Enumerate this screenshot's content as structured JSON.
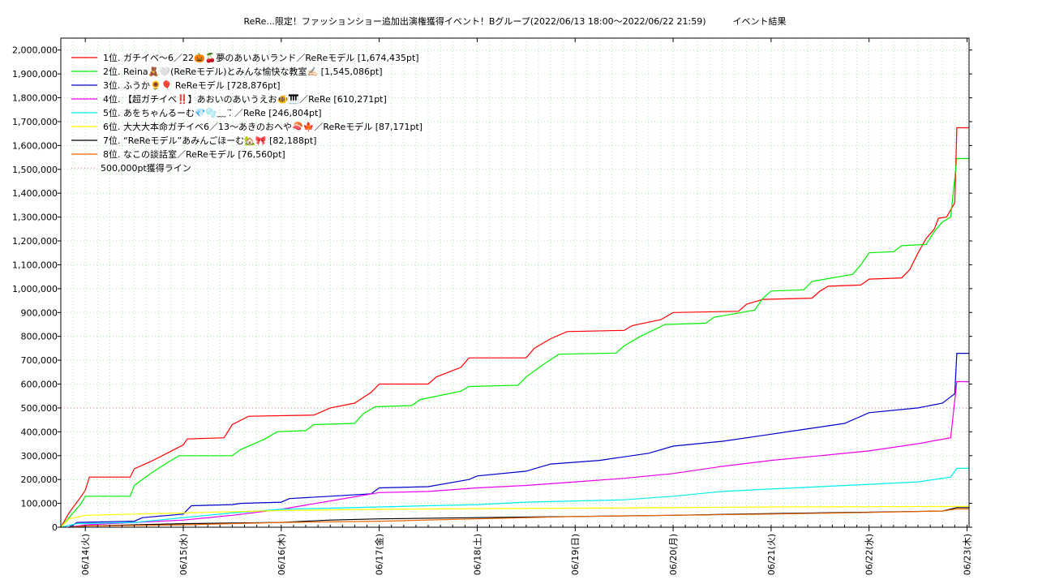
{
  "chart_data": {
    "type": "line",
    "title": "ReRe...限定！ファッションショー追加出演権獲得イベント！Bグループ(2022/06/13 18:00〜2022/06/22 21:59)　　　イベント結果",
    "xlabel": "",
    "ylabel": "",
    "x_range": [
      "2022-06-13 18:00",
      "2022-06-23 00:30"
    ],
    "ylim": [
      0,
      2050000
    ],
    "y_ticks": [
      "0",
      "100,000",
      "200,000",
      "300,000",
      "400,000",
      "500,000",
      "600,000",
      "700,000",
      "800,000",
      "900,000",
      "1,000,000",
      "1,100,000",
      "1,200,000",
      "1,300,000",
      "1,400,000",
      "1,500,000",
      "1,600,000",
      "1,700,000",
      "1,800,000",
      "1,900,000",
      "2,000,000"
    ],
    "x_ticks": [
      {
        "date": "2022-06-14",
        "label": "06/14(火)"
      },
      {
        "date": "2022-06-15",
        "label": "06/15(水)"
      },
      {
        "date": "2022-06-16",
        "label": "06/16(木)"
      },
      {
        "date": "2022-06-17",
        "label": "06/17(金)"
      },
      {
        "date": "2022-06-18",
        "label": "06/18(土)"
      },
      {
        "date": "2022-06-19",
        "label": "06/19(日)"
      },
      {
        "date": "2022-06-20",
        "label": "06/20(月)"
      },
      {
        "date": "2022-06-21",
        "label": "06/21(火)"
      },
      {
        "date": "2022-06-22",
        "label": "06/22(水)"
      },
      {
        "date": "2022-06-23",
        "label": "06/23(木)"
      }
    ],
    "grid": true,
    "legend_position": "top-left",
    "threshold": {
      "name": "500,000pt獲得ライン",
      "value": 500000,
      "color": "#e08080"
    },
    "series": [
      {
        "name": "1位. ガチイベ〜6／22🎃🍒夢のあいあいランド／ReReモデル [1,674,435pt]",
        "color": "#ff0000",
        "points": [
          [
            "2022-06-13 18:00",
            0
          ],
          [
            "2022-06-13 20:00",
            60000
          ],
          [
            "2022-06-13 23:00",
            130000
          ],
          [
            "2022-06-14 00:00",
            155000
          ],
          [
            "2022-06-14 01:00",
            210000
          ],
          [
            "2022-06-14 11:00",
            210000
          ],
          [
            "2022-06-14 12:00",
            245000
          ],
          [
            "2022-06-14 16:00",
            275000
          ],
          [
            "2022-06-14 20:00",
            310000
          ],
          [
            "2022-06-15 00:00",
            345000
          ],
          [
            "2022-06-15 01:00",
            370000
          ],
          [
            "2022-06-15 10:00",
            375000
          ],
          [
            "2022-06-15 12:00",
            430000
          ],
          [
            "2022-06-15 16:00",
            465000
          ],
          [
            "2022-06-16 08:00",
            470000
          ],
          [
            "2022-06-16 12:00",
            500000
          ],
          [
            "2022-06-16 18:00",
            520000
          ],
          [
            "2022-06-16 22:00",
            565000
          ],
          [
            "2022-06-17 00:00",
            600000
          ],
          [
            "2022-06-17 12:00",
            600000
          ],
          [
            "2022-06-17 14:00",
            630000
          ],
          [
            "2022-06-17 20:00",
            670000
          ],
          [
            "2022-06-17 22:00",
            710000
          ],
          [
            "2022-06-18 12:00",
            710000
          ],
          [
            "2022-06-18 14:00",
            750000
          ],
          [
            "2022-06-18 18:00",
            790000
          ],
          [
            "2022-06-18 22:00",
            820000
          ],
          [
            "2022-06-19 12:00",
            825000
          ],
          [
            "2022-06-19 14:00",
            845000
          ],
          [
            "2022-06-19 21:00",
            870000
          ],
          [
            "2022-06-20 00:00",
            900000
          ],
          [
            "2022-06-20 16:00",
            905000
          ],
          [
            "2022-06-20 18:00",
            935000
          ],
          [
            "2022-06-20 22:00",
            955000
          ],
          [
            "2022-06-21 10:00",
            960000
          ],
          [
            "2022-06-21 12:00",
            990000
          ],
          [
            "2022-06-21 14:00",
            1010000
          ],
          [
            "2022-06-21 22:00",
            1015000
          ],
          [
            "2022-06-22 00:00",
            1040000
          ],
          [
            "2022-06-22 08:00",
            1045000
          ],
          [
            "2022-06-22 10:00",
            1080000
          ],
          [
            "2022-06-22 12:00",
            1150000
          ],
          [
            "2022-06-22 14:00",
            1210000
          ],
          [
            "2022-06-22 16:00",
            1250000
          ],
          [
            "2022-06-22 17:00",
            1295000
          ],
          [
            "2022-06-22 19:00",
            1300000
          ],
          [
            "2022-06-22 21:00",
            1360000
          ],
          [
            "2022-06-22 21:30",
            1674435
          ],
          [
            "2022-06-23 00:30",
            1674435
          ]
        ]
      },
      {
        "name": "2位. Reina🧸🤍(ReReモデル)とみんな愉快な教室✍🏻 [1,545,086pt]",
        "color": "#00ee00",
        "points": [
          [
            "2022-06-13 18:00",
            0
          ],
          [
            "2022-06-13 20:00",
            40000
          ],
          [
            "2022-06-13 23:00",
            100000
          ],
          [
            "2022-06-14 00:00",
            130000
          ],
          [
            "2022-06-14 11:00",
            130000
          ],
          [
            "2022-06-14 12:00",
            175000
          ],
          [
            "2022-06-14 16:00",
            225000
          ],
          [
            "2022-06-14 20:00",
            270000
          ],
          [
            "2022-06-14 23:00",
            300000
          ],
          [
            "2022-06-15 12:00",
            300000
          ],
          [
            "2022-06-15 14:00",
            325000
          ],
          [
            "2022-06-15 20:00",
            370000
          ],
          [
            "2022-06-15 23:00",
            400000
          ],
          [
            "2022-06-16 06:00",
            405000
          ],
          [
            "2022-06-16 08:00",
            430000
          ],
          [
            "2022-06-16 18:00",
            435000
          ],
          [
            "2022-06-16 20:00",
            475000
          ],
          [
            "2022-06-16 23:00",
            505000
          ],
          [
            "2022-06-17 08:00",
            510000
          ],
          [
            "2022-06-17 10:00",
            535000
          ],
          [
            "2022-06-17 20:00",
            570000
          ],
          [
            "2022-06-17 22:00",
            590000
          ],
          [
            "2022-06-18 10:00",
            595000
          ],
          [
            "2022-06-18 12:00",
            630000
          ],
          [
            "2022-06-18 16:00",
            680000
          ],
          [
            "2022-06-18 20:00",
            725000
          ],
          [
            "2022-06-19 10:00",
            730000
          ],
          [
            "2022-06-19 12:00",
            760000
          ],
          [
            "2022-06-19 16:00",
            800000
          ],
          [
            "2022-06-19 22:00",
            850000
          ],
          [
            "2022-06-20 08:00",
            855000
          ],
          [
            "2022-06-20 10:00",
            880000
          ],
          [
            "2022-06-20 20:00",
            910000
          ],
          [
            "2022-06-20 22:00",
            960000
          ],
          [
            "2022-06-21 00:00",
            990000
          ],
          [
            "2022-06-21 08:00",
            995000
          ],
          [
            "2022-06-21 10:00",
            1030000
          ],
          [
            "2022-06-21 20:00",
            1060000
          ],
          [
            "2022-06-21 22:00",
            1100000
          ],
          [
            "2022-06-22 00:00",
            1150000
          ],
          [
            "2022-06-22 06:00",
            1155000
          ],
          [
            "2022-06-22 08:00",
            1180000
          ],
          [
            "2022-06-22 14:00",
            1185000
          ],
          [
            "2022-06-22 16:00",
            1240000
          ],
          [
            "2022-06-22 18:00",
            1280000
          ],
          [
            "2022-06-22 20:00",
            1300000
          ],
          [
            "2022-06-22 21:30",
            1545086
          ],
          [
            "2022-06-23 00:30",
            1545086
          ]
        ]
      },
      {
        "name": "3位. ふうか🌻🎈 ReReモデル [728,876pt]",
        "color": "#0000cc",
        "points": [
          [
            "2022-06-13 20:00",
            0
          ],
          [
            "2022-06-13 22:00",
            20000
          ],
          [
            "2022-06-14 12:00",
            25000
          ],
          [
            "2022-06-14 14:00",
            40000
          ],
          [
            "2022-06-15 00:00",
            55000
          ],
          [
            "2022-06-15 02:00",
            90000
          ],
          [
            "2022-06-15 12:00",
            95000
          ],
          [
            "2022-06-15 14:00",
            100000
          ],
          [
            "2022-06-16 00:00",
            105000
          ],
          [
            "2022-06-16 02:00",
            120000
          ],
          [
            "2022-06-16 12:00",
            130000
          ],
          [
            "2022-06-16 22:00",
            140000
          ],
          [
            "2022-06-17 00:00",
            165000
          ],
          [
            "2022-06-17 12:00",
            170000
          ],
          [
            "2022-06-17 22:00",
            200000
          ],
          [
            "2022-06-18 00:00",
            215000
          ],
          [
            "2022-06-18 12:00",
            235000
          ],
          [
            "2022-06-18 18:00",
            265000
          ],
          [
            "2022-06-19 06:00",
            280000
          ],
          [
            "2022-06-19 18:00",
            310000
          ],
          [
            "2022-06-20 00:00",
            340000
          ],
          [
            "2022-06-20 12:00",
            360000
          ],
          [
            "2022-06-20 22:00",
            385000
          ],
          [
            "2022-06-21 06:00",
            405000
          ],
          [
            "2022-06-21 18:00",
            435000
          ],
          [
            "2022-06-22 00:00",
            480000
          ],
          [
            "2022-06-22 12:00",
            500000
          ],
          [
            "2022-06-22 18:00",
            520000
          ],
          [
            "2022-06-22 21:00",
            560000
          ],
          [
            "2022-06-22 21:30",
            728876
          ],
          [
            "2022-06-23 00:30",
            728876
          ]
        ]
      },
      {
        "name": "4位. 【超ガチイベ‼️】あおいのあいうえお🐠🎹／ReRe [610,271pt]",
        "color": "#ee00ee",
        "points": [
          [
            "2022-06-13 20:00",
            0
          ],
          [
            "2022-06-14 00:00",
            10000
          ],
          [
            "2022-06-14 12:00",
            20000
          ],
          [
            "2022-06-15 00:00",
            30000
          ],
          [
            "2022-06-15 12:00",
            50000
          ],
          [
            "2022-06-16 00:00",
            75000
          ],
          [
            "2022-06-16 12:00",
            110000
          ],
          [
            "2022-06-17 00:00",
            145000
          ],
          [
            "2022-06-17 12:00",
            150000
          ],
          [
            "2022-06-18 00:00",
            165000
          ],
          [
            "2022-06-18 12:00",
            175000
          ],
          [
            "2022-06-19 00:00",
            190000
          ],
          [
            "2022-06-19 12:00",
            205000
          ],
          [
            "2022-06-20 00:00",
            225000
          ],
          [
            "2022-06-20 12:00",
            255000
          ],
          [
            "2022-06-21 00:00",
            280000
          ],
          [
            "2022-06-21 12:00",
            300000
          ],
          [
            "2022-06-22 00:00",
            320000
          ],
          [
            "2022-06-22 12:00",
            350000
          ],
          [
            "2022-06-22 20:00",
            375000
          ],
          [
            "2022-06-22 21:30",
            610271
          ],
          [
            "2022-06-23 00:30",
            610271
          ]
        ]
      },
      {
        "name": "5位. あをちゃんるーむ💎🫧﹏ .⃗ ／ReRe [246,804pt]",
        "color": "#00eeee",
        "points": [
          [
            "2022-06-13 18:00",
            0
          ],
          [
            "2022-06-13 22:00",
            15000
          ],
          [
            "2022-06-14 12:00",
            20000
          ],
          [
            "2022-06-15 00:00",
            40000
          ],
          [
            "2022-06-15 12:00",
            60000
          ],
          [
            "2022-06-16 00:00",
            75000
          ],
          [
            "2022-06-16 12:00",
            80000
          ],
          [
            "2022-06-17 00:00",
            85000
          ],
          [
            "2022-06-17 12:00",
            90000
          ],
          [
            "2022-06-18 00:00",
            95000
          ],
          [
            "2022-06-18 12:00",
            105000
          ],
          [
            "2022-06-19 00:00",
            110000
          ],
          [
            "2022-06-19 12:00",
            115000
          ],
          [
            "2022-06-20 00:00",
            130000
          ],
          [
            "2022-06-20 12:00",
            150000
          ],
          [
            "2022-06-21 00:00",
            160000
          ],
          [
            "2022-06-21 12:00",
            170000
          ],
          [
            "2022-06-22 00:00",
            180000
          ],
          [
            "2022-06-22 12:00",
            190000
          ],
          [
            "2022-06-22 20:00",
            210000
          ],
          [
            "2022-06-22 21:30",
            246804
          ],
          [
            "2022-06-23 00:30",
            246804
          ]
        ]
      },
      {
        "name": "6位. 大大大本命ガチイベ6／13〜あきのおへや🍣🍁／ReReモデル [87,171pt]",
        "color": "#ffff00",
        "points": [
          [
            "2022-06-13 18:00",
            0
          ],
          [
            "2022-06-13 20:00",
            35000
          ],
          [
            "2022-06-14 00:00",
            50000
          ],
          [
            "2022-06-14 12:00",
            55000
          ],
          [
            "2022-06-15 00:00",
            60000
          ],
          [
            "2022-06-16 00:00",
            70000
          ],
          [
            "2022-06-17 00:00",
            75000
          ],
          [
            "2022-06-18 00:00",
            78000
          ],
          [
            "2022-06-19 00:00",
            80000
          ],
          [
            "2022-06-20 00:00",
            82000
          ],
          [
            "2022-06-21 00:00",
            85000
          ],
          [
            "2022-06-22 00:00",
            86000
          ],
          [
            "2022-06-22 21:30",
            87171
          ],
          [
            "2022-06-23 00:30",
            87171
          ]
        ]
      },
      {
        "name": "7位. “ReReモデル”あみんごほーむ🏡🎀 [82,188pt]",
        "color": "#000000",
        "points": [
          [
            "2022-06-13 20:00",
            0
          ],
          [
            "2022-06-14 00:00",
            5000
          ],
          [
            "2022-06-15 00:00",
            15000
          ],
          [
            "2022-06-16 00:00",
            20000
          ],
          [
            "2022-06-16 12:00",
            30000
          ],
          [
            "2022-06-17 00:00",
            35000
          ],
          [
            "2022-06-18 00:00",
            40000
          ],
          [
            "2022-06-19 00:00",
            45000
          ],
          [
            "2022-06-20 00:00",
            50000
          ],
          [
            "2022-06-21 00:00",
            57000
          ],
          [
            "2022-06-22 00:00",
            63000
          ],
          [
            "2022-06-22 18:00",
            68000
          ],
          [
            "2022-06-22 21:30",
            82188
          ],
          [
            "2022-06-23 00:30",
            82188
          ]
        ]
      },
      {
        "name": "8位. なこの談話室／ReReモデル [76,560pt]",
        "color": "#ee6600",
        "points": [
          [
            "2022-06-13 20:00",
            0
          ],
          [
            "2022-06-14 00:00",
            5000
          ],
          [
            "2022-06-15 00:00",
            10000
          ],
          [
            "2022-06-16 00:00",
            20000
          ],
          [
            "2022-06-17 00:00",
            25000
          ],
          [
            "2022-06-18 00:00",
            35000
          ],
          [
            "2022-06-19 00:00",
            45000
          ],
          [
            "2022-06-20 00:00",
            50000
          ],
          [
            "2022-06-21 00:00",
            55000
          ],
          [
            "2022-06-22 00:00",
            62000
          ],
          [
            "2022-06-22 18:00",
            68000
          ],
          [
            "2022-06-22 21:30",
            76560
          ],
          [
            "2022-06-23 00:30",
            76560
          ]
        ]
      }
    ]
  }
}
